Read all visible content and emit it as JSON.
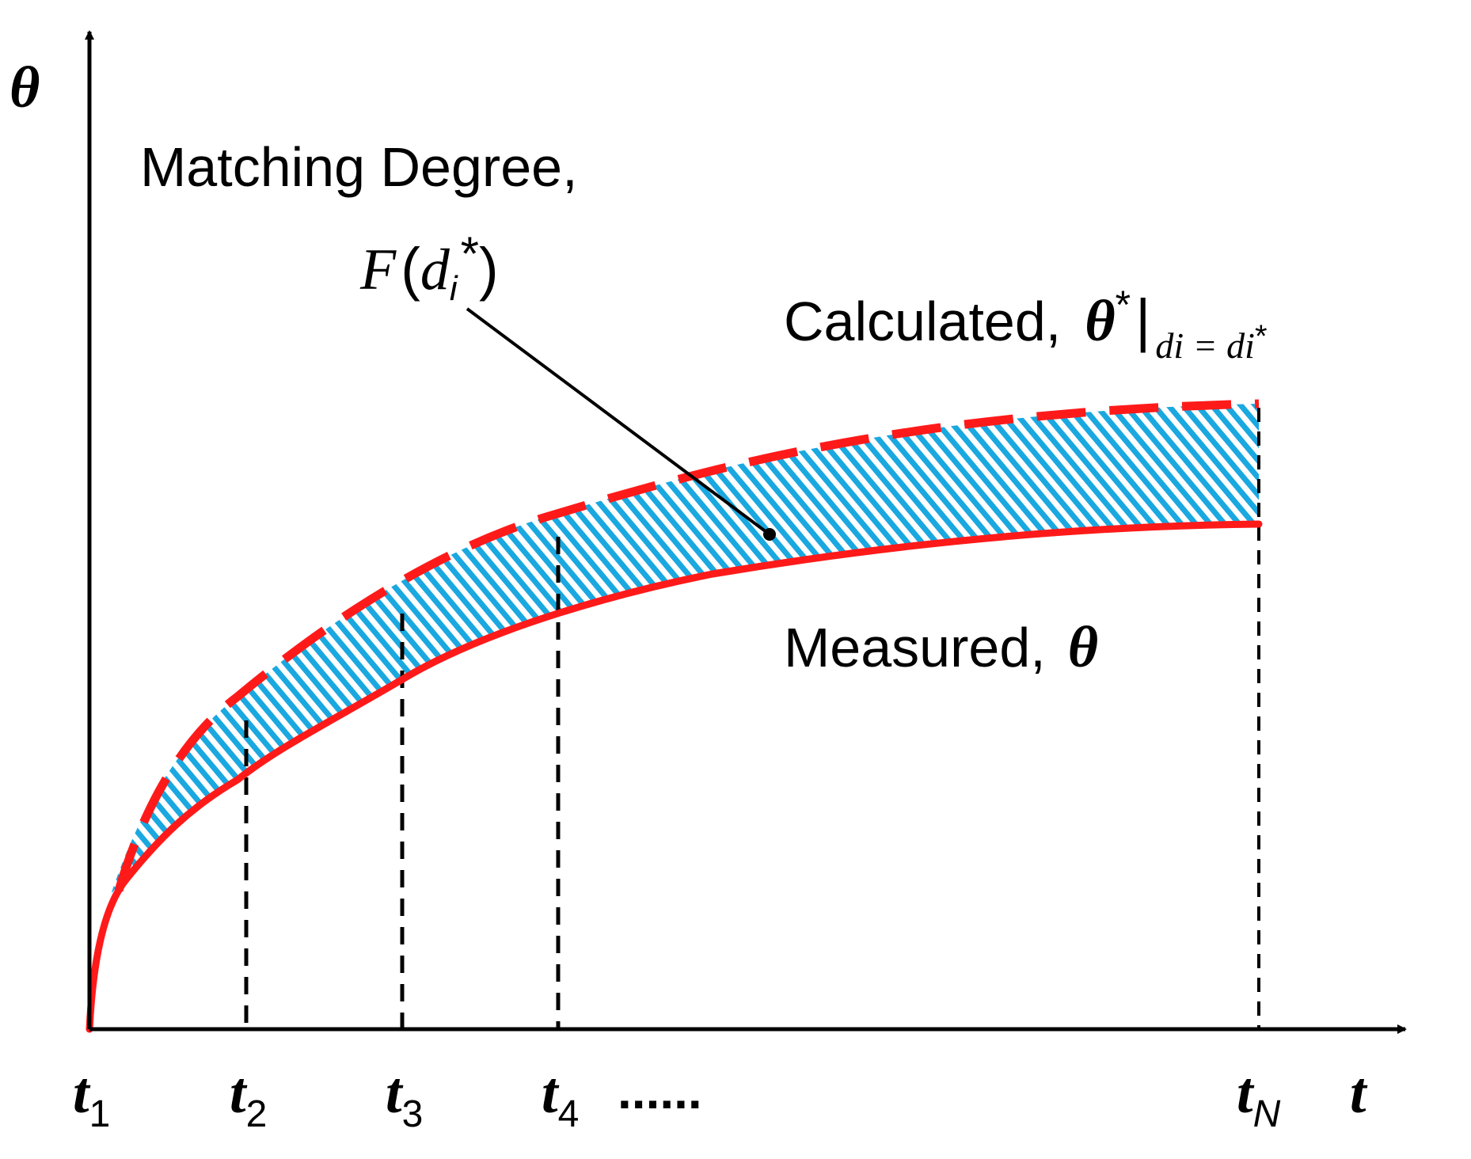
{
  "axes": {
    "y_symbol": "θ",
    "x_symbol": "t",
    "ticks": [
      {
        "base": "t",
        "sub": "1"
      },
      {
        "base": "t",
        "sub": "2"
      },
      {
        "base": "t",
        "sub": "3"
      },
      {
        "base": "t",
        "sub": "4"
      },
      {
        "base": "t",
        "sub": "N"
      }
    ],
    "ellipsis": "......"
  },
  "annotation": {
    "line1": "Matching Degree,",
    "func": "F",
    "open": "(",
    "var": "d",
    "var_sub": "i",
    "star": "*",
    "close": ")"
  },
  "calculated": {
    "label": "Calculated,",
    "symbol": "θ",
    "star": "*",
    "bar": "|",
    "condition": "di = di",
    "condition_star": "*"
  },
  "measured": {
    "label": "Measured,",
    "symbol": "θ"
  },
  "colors": {
    "curve": "#ff1a1a",
    "hatch": "#1aa8e0",
    "axis": "#000000"
  }
}
